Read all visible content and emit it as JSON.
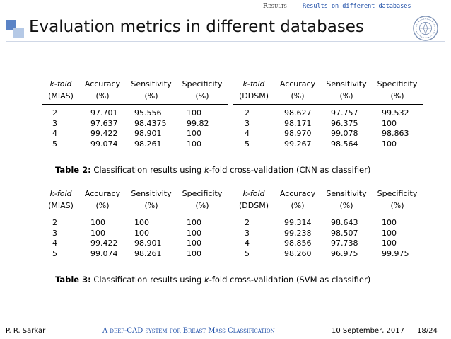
{
  "nav": {
    "section": "Results",
    "subsection": "Results on different databases"
  },
  "title": "Evaluation metrics in different databases",
  "colors": {
    "accent": "#5a83c6",
    "accent_light": "#b5c9e6",
    "link": "#1f4fa8"
  },
  "logo_icon": "university-seal-icon",
  "tables": [
    {
      "left": {
        "headers": [
          {
            "line1": "k-fold",
            "line2": "(MIAS)"
          },
          {
            "line1": "Accuracy",
            "line2": "(%)"
          },
          {
            "line1": "Sensitivity",
            "line2": "(%)"
          },
          {
            "line1": "Specificity",
            "line2": "(%)"
          }
        ],
        "rows": [
          [
            "2",
            "97.701",
            "95.556",
            "100"
          ],
          [
            "3",
            "97.637",
            "98.4375",
            "99.82"
          ],
          [
            "4",
            "99.422",
            "98.901",
            "100"
          ],
          [
            "5",
            "99.074",
            "98.261",
            "100"
          ]
        ]
      },
      "right": {
        "headers": [
          {
            "line1": "k-fold",
            "line2": "(DDSM)"
          },
          {
            "line1": "Accuracy",
            "line2": "(%)"
          },
          {
            "line1": "Sensitivity",
            "line2": "(%)"
          },
          {
            "line1": "Specificity",
            "line2": "(%)"
          }
        ],
        "rows": [
          [
            "2",
            "98.627",
            "97.757",
            "99.532"
          ],
          [
            "3",
            "98.171",
            "96.375",
            "100"
          ],
          [
            "4",
            "98.970",
            "99.078",
            "98.863"
          ],
          [
            "5",
            "99.267",
            "98.564",
            "100"
          ]
        ]
      },
      "caption_label": "Table 2:",
      "caption_pre": " Classification results using ",
      "caption_k": "k",
      "caption_post": "-fold cross-validation (CNN as classifier)"
    },
    {
      "left": {
        "headers": [
          {
            "line1": "k-fold",
            "line2": "(MIAS)"
          },
          {
            "line1": "Accuracy",
            "line2": "(%)"
          },
          {
            "line1": "Sensitivity",
            "line2": "(%)"
          },
          {
            "line1": "Specificity",
            "line2": "(%)"
          }
        ],
        "rows": [
          [
            "2",
            "100",
            "100",
            "100"
          ],
          [
            "3",
            "100",
            "100",
            "100"
          ],
          [
            "4",
            "99.422",
            "98.901",
            "100"
          ],
          [
            "5",
            "99.074",
            "98.261",
            "100"
          ]
        ]
      },
      "right": {
        "headers": [
          {
            "line1": "k-fold",
            "line2": "(DDSM)"
          },
          {
            "line1": "Accuracy",
            "line2": "(%)"
          },
          {
            "line1": "Sensitivity",
            "line2": "(%)"
          },
          {
            "line1": "Specificity",
            "line2": "(%)"
          }
        ],
        "rows": [
          [
            "2",
            "99.314",
            "98.643",
            "100"
          ],
          [
            "3",
            "99.238",
            "98.507",
            "100"
          ],
          [
            "4",
            "98.856",
            "97.738",
            "100"
          ],
          [
            "5",
            "98.260",
            "96.975",
            "99.975"
          ]
        ]
      },
      "caption_label": "Table 3:",
      "caption_pre": " Classification results using ",
      "caption_k": "k",
      "caption_post": "-fold cross-validation (SVM as classifier)"
    }
  ],
  "footer": {
    "author": "P. R. Sarkar",
    "title": "A deep-CAD system for Breast Mass Classification",
    "date": "10 September, 2017",
    "page": "18/24"
  }
}
